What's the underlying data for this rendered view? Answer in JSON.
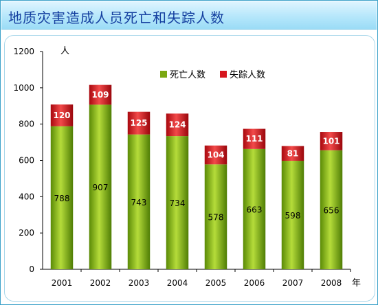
{
  "title": "地质灾害造成人员死亡和失踪人数",
  "chart_data": {
    "type": "bar",
    "stacked": true,
    "categories": [
      "2001",
      "2002",
      "2003",
      "2004",
      "2005",
      "2006",
      "2007",
      "2008"
    ],
    "series": [
      {
        "name": "死亡人数",
        "values": [
          788,
          907,
          743,
          734,
          578,
          663,
          598,
          656
        ],
        "color": "#7aa812"
      },
      {
        "name": "失踪人数",
        "values": [
          120,
          109,
          125,
          124,
          104,
          111,
          81,
          101
        ],
        "color": "#d6161e"
      }
    ],
    "ylim": [
      0,
      1200
    ],
    "yticks": [
      0,
      200,
      400,
      600,
      800,
      1000,
      1200
    ],
    "y_unit": "人",
    "x_unit": "年",
    "legend_position": "top-right",
    "grid": false
  }
}
